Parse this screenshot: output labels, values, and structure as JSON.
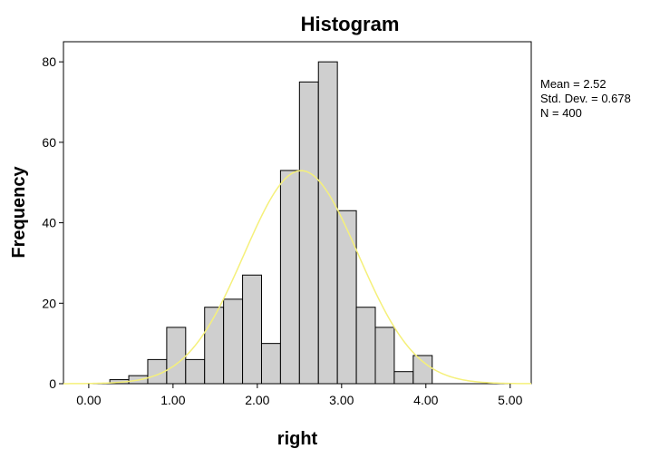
{
  "chart_data": {
    "type": "bar",
    "title": "Histogram",
    "xlabel": "right",
    "ylabel": "Frequency",
    "xlim": [
      -0.3,
      5.25
    ],
    "ylim": [
      0,
      85
    ],
    "x_ticks": [
      "0.00",
      "1.00",
      "2.00",
      "3.00",
      "4.00",
      "5.00"
    ],
    "y_ticks": [
      "0",
      "20",
      "40",
      "60",
      "80"
    ],
    "bin_width": 0.225,
    "bins": [
      {
        "start": 0.25,
        "count": 1
      },
      {
        "start": 0.475,
        "count": 2
      },
      {
        "start": 0.7,
        "count": 6
      },
      {
        "start": 0.925,
        "count": 14
      },
      {
        "start": 1.15,
        "count": 6
      },
      {
        "start": 1.375,
        "count": 19
      },
      {
        "start": 1.6,
        "count": 21
      },
      {
        "start": 1.825,
        "count": 27
      },
      {
        "start": 2.05,
        "count": 10
      },
      {
        "start": 2.275,
        "count": 53
      },
      {
        "start": 2.5,
        "count": 75
      },
      {
        "start": 2.725,
        "count": 80
      },
      {
        "start": 2.95,
        "count": 43
      },
      {
        "start": 3.175,
        "count": 19
      },
      {
        "start": 3.4,
        "count": 14
      },
      {
        "start": 3.625,
        "count": 3
      },
      {
        "start": 3.85,
        "count": 7
      }
    ],
    "normal_curve": {
      "mean": 2.52,
      "sd": 0.678,
      "n": 400,
      "color": "#f5f07a"
    },
    "bar_color": "#cfcfcf",
    "grid": false,
    "legend": {
      "placement": "right",
      "lines": [
        "Mean = 2.52",
        "Std. Dev. = 0.678",
        "N = 400"
      ]
    }
  }
}
